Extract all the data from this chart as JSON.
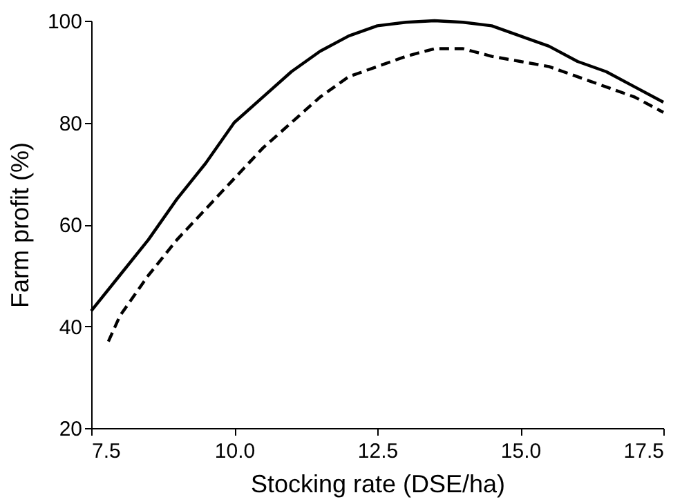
{
  "chart_data": {
    "type": "line",
    "xlabel": "Stocking rate (DSE/ha)",
    "ylabel": "Farm profit (%)",
    "xlim": [
      7.5,
      17.5
    ],
    "ylim": [
      20,
      100
    ],
    "xticks": [
      7.5,
      {
        "value": 10,
        "label": "10.0"
      },
      12.5,
      {
        "value": 15,
        "label": "15.0"
      },
      17.5
    ],
    "yticks": [
      20,
      40,
      60,
      80,
      100
    ],
    "grid": false,
    "marker": "none",
    "series": [
      {
        "color": "#000000",
        "line_style": "solid",
        "x": [
          7.5,
          8,
          8.5,
          9,
          9.5,
          10,
          10.5,
          11,
          11.5,
          12,
          12.5,
          13,
          13.5,
          14,
          14.5,
          15,
          15.5,
          16,
          16.5,
          17,
          17.5
        ],
        "values": [
          43,
          50,
          57,
          65,
          72,
          80,
          85,
          90,
          94,
          97,
          99,
          99.7,
          100,
          99.7,
          99,
          97,
          95,
          92,
          90,
          87,
          84
        ]
      },
      {
        "color": "#000000",
        "line_style": "dashed",
        "x": [
          7.8,
          8,
          8.5,
          9,
          9.5,
          10,
          10.5,
          11,
          11.5,
          12,
          12.5,
          13,
          13.5,
          14,
          14.5,
          15,
          15.5,
          16,
          16.5,
          17,
          17.5
        ],
        "values": [
          37,
          42,
          50,
          57,
          63,
          69,
          75,
          80,
          85,
          89,
          91,
          93,
          94.5,
          94.5,
          93,
          92,
          91,
          89,
          87,
          85,
          82
        ]
      }
    ]
  }
}
